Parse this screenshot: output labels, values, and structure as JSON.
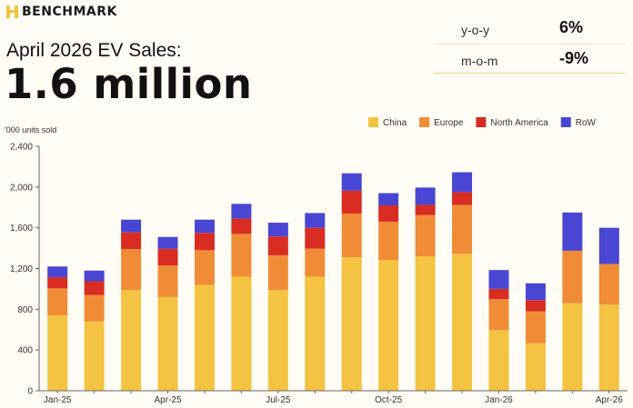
{
  "brand": {
    "name": "BENCHMARK",
    "accent": "#f5c342"
  },
  "header": {
    "title": "April 2026 EV Sales:",
    "headline_value": "1.6 million"
  },
  "stats": [
    {
      "label": "y-o-y",
      "value": "6%"
    },
    {
      "label": "m-o-m",
      "value": "-9%"
    }
  ],
  "chart_data": {
    "type": "bar",
    "stacked": true,
    "ylabel": "'000 units sold",
    "ylim": [
      0,
      2400
    ],
    "yticks": [
      0,
      400,
      800,
      1200,
      1600,
      2000,
      2400
    ],
    "ytick_labels": [
      "0",
      "400",
      "800",
      "1,200",
      "1,600",
      "2,000",
      "2,400"
    ],
    "grid": false,
    "legend_position": "top-right",
    "categories": [
      "Jan-25",
      "Feb-25",
      "Mar-25",
      "Apr-25",
      "May-25",
      "Jun-25",
      "Jul-25",
      "Aug-25",
      "Sep-25",
      "Oct-25",
      "Nov-25",
      "Dec-25",
      "Jan-26",
      "Feb-26",
      "Mar-26",
      "Apr-26"
    ],
    "x_tick_labels": [
      "Jan-25",
      "Apr-25",
      "Jul-25",
      "Oct-25",
      "Jan-26",
      "Apr-26"
    ],
    "x_tick_indices": [
      0,
      3,
      6,
      9,
      12,
      15
    ],
    "series": [
      {
        "name": "China",
        "color": "#f5c342",
        "values": [
          740,
          680,
          990,
          920,
          1040,
          1120,
          990,
          1120,
          1310,
          1285,
          1320,
          1345,
          595,
          465,
          860,
          845
        ]
      },
      {
        "name": "Europe",
        "color": "#f08c36",
        "values": [
          265,
          260,
          400,
          310,
          340,
          420,
          340,
          275,
          430,
          375,
          405,
          480,
          305,
          315,
          515,
          400
        ]
      },
      {
        "name": "North America",
        "color": "#d92c23",
        "values": [
          110,
          135,
          165,
          165,
          170,
          150,
          185,
          205,
          225,
          160,
          100,
          125,
          100,
          110,
          0,
          0
        ]
      },
      {
        "name": "RoW",
        "color": "#4a46d4",
        "values": [
          105,
          105,
          125,
          115,
          130,
          145,
          135,
          145,
          170,
          120,
          170,
          195,
          185,
          165,
          375,
          355
        ]
      }
    ]
  }
}
